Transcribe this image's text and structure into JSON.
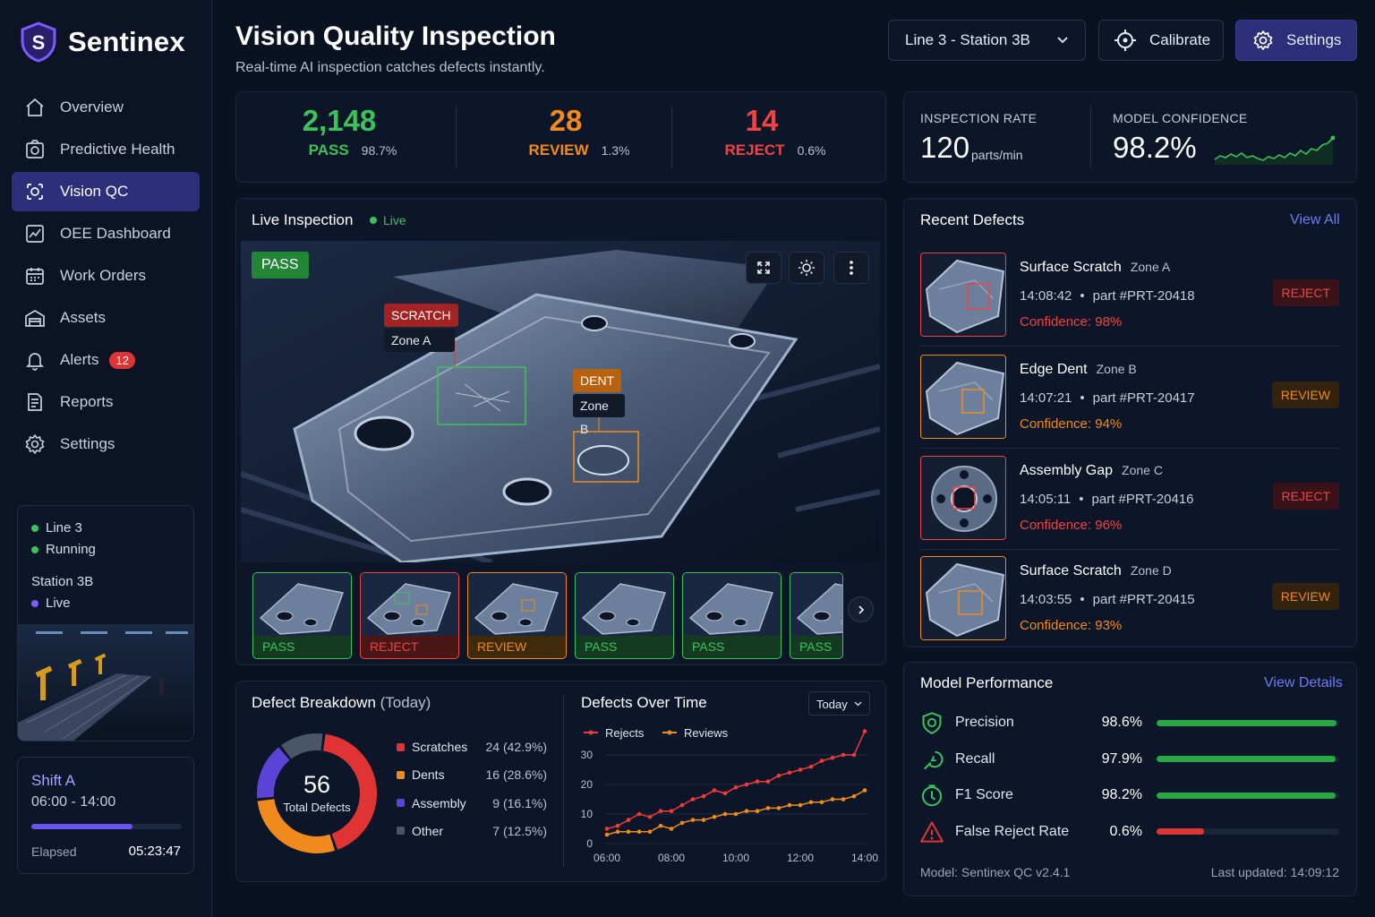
{
  "app": {
    "name": "Sentinex"
  },
  "nav": [
    {
      "label": "Overview",
      "icon": "home-icon"
    },
    {
      "label": "Predictive Health",
      "icon": "health-icon"
    },
    {
      "label": "Vision QC",
      "icon": "vision-icon",
      "active": true
    },
    {
      "label": "OEE Dashboard",
      "icon": "chart-icon"
    },
    {
      "label": "Work Orders",
      "icon": "calendar-icon"
    },
    {
      "label": "Assets",
      "icon": "warehouse-icon"
    },
    {
      "label": "Alerts",
      "icon": "bell-icon",
      "badge": "12"
    },
    {
      "label": "Reports",
      "icon": "document-icon"
    },
    {
      "label": "Settings",
      "icon": "gear-icon"
    }
  ],
  "line_status": {
    "line": "Line 3",
    "state": "Running",
    "station": "Station 3B",
    "live": "Live"
  },
  "shift": {
    "name": "Shift A",
    "hours": "06:00 - 14:00",
    "elapsed_label": "Elapsed",
    "elapsed": "05:23:47",
    "progress": 0.67
  },
  "header": {
    "title": "Vision Quality Inspection",
    "subtitle": "Real-time AI inspection catches defects instantly.",
    "station_select": "Line 3 - Station 3B",
    "calibrate": "Calibrate",
    "settings": "Settings"
  },
  "stats": [
    {
      "value": "2,148",
      "label": "PASS",
      "pct": "98.7%",
      "color": "#3cc25a"
    },
    {
      "value": "28",
      "label": "REVIEW",
      "pct": "1.3%",
      "color": "#f08a1c"
    },
    {
      "value": "14",
      "label": "REJECT",
      "pct": "0.6%",
      "color": "#ee4444"
    }
  ],
  "rate": {
    "label": "INSPECTION RATE",
    "value": "120",
    "unit": "parts/min"
  },
  "confidence": {
    "label": "MODEL CONFIDENCE",
    "value": "98.2%"
  },
  "live": {
    "title": "Live Inspection",
    "status": "Live",
    "result": "PASS",
    "tags": [
      {
        "type": "SCRATCH",
        "zone": "Zone A"
      },
      {
        "type": "DENT",
        "zone": "Zone B"
      }
    ],
    "thumbs": [
      "PASS",
      "REJECT",
      "REVIEW",
      "PASS",
      "PASS",
      "PASS"
    ]
  },
  "recent": {
    "title": "Recent Defects",
    "view_all": "View All",
    "items": [
      {
        "title": "Surface Scratch",
        "zone": "Zone A",
        "time": "14:08:42",
        "part": "part #PRT-20418",
        "confidence": "Confidence: 98%",
        "status": "REJECT"
      },
      {
        "title": "Edge Dent",
        "zone": "Zone B",
        "time": "14:07:21",
        "part": "part #PRT-20417",
        "confidence": "Confidence: 94%",
        "status": "REVIEW"
      },
      {
        "title": "Assembly Gap",
        "zone": "Zone C",
        "time": "14:05:11",
        "part": "part #PRT-20416",
        "confidence": "Confidence: 96%",
        "status": "REJECT"
      },
      {
        "title": "Surface Scratch",
        "zone": "Zone D",
        "time": "14:03:55",
        "part": "part #PRT-20415",
        "confidence": "Confidence: 93%",
        "status": "REVIEW"
      }
    ]
  },
  "breakdown": {
    "title": "Defect Breakdown",
    "period": "(Today)",
    "total": "56",
    "total_label": "Total Defects"
  },
  "over_time": {
    "title": "Defects Over Time",
    "range": "Today"
  },
  "model": {
    "title": "Model Performance",
    "view_details": "View Details",
    "metrics": [
      {
        "name": "Precision",
        "value": "98.6%",
        "fill": 0.986,
        "icon": "shield-check-icon",
        "color": "#28a745"
      },
      {
        "name": "Recall",
        "value": "97.9%",
        "fill": 0.979,
        "icon": "recall-icon",
        "color": "#28a745"
      },
      {
        "name": "F1 Score",
        "value": "98.2%",
        "fill": 0.982,
        "icon": "target-icon",
        "color": "#28a745"
      },
      {
        "name": "False Reject Rate",
        "value": "0.6%",
        "fill": 0.26,
        "icon": "warning-icon",
        "color": "#e03434"
      }
    ],
    "version": "Model: Sentinex QC v2.4.1",
    "updated": "Last updated: 14:09:12"
  },
  "chart_data": [
    {
      "type": "pie",
      "title": "Defect Breakdown (Today)",
      "categories": [
        "Scratches",
        "Dents",
        "Assembly",
        "Other"
      ],
      "values": [
        24,
        16,
        9,
        7
      ],
      "labels": [
        "24 (42.9%)",
        "16 (28.6%)",
        "9 (16.1%)",
        "7 (12.5%)"
      ],
      "colors": [
        "#e03434",
        "#f08a1c",
        "#5b43d6",
        "#4b5568"
      ]
    },
    {
      "type": "line",
      "title": "Defects Over Time",
      "x": [
        "06:00",
        "06:20",
        "06:40",
        "07:00",
        "07:20",
        "07:40",
        "08:00",
        "08:20",
        "08:40",
        "09:00",
        "09:20",
        "09:40",
        "10:00",
        "10:20",
        "10:40",
        "11:00",
        "11:20",
        "11:40",
        "12:00",
        "12:20",
        "12:40",
        "13:00",
        "13:20",
        "13:40",
        "14:00"
      ],
      "x_ticks": [
        "06:00",
        "08:00",
        "10:00",
        "12:00",
        "14:00"
      ],
      "ylim": [
        0,
        30
      ],
      "y_ticks": [
        0,
        10,
        20,
        30
      ],
      "series": [
        {
          "name": "Rejects",
          "color": "#ef3b3b",
          "values": [
            5,
            6,
            8,
            10,
            9,
            11,
            11,
            13,
            15,
            16,
            18,
            17,
            19,
            20,
            21,
            21,
            23,
            24,
            25,
            26,
            28,
            29,
            30,
            30,
            38
          ]
        },
        {
          "name": "Reviews",
          "color": "#f08a1c",
          "values": [
            3,
            4,
            4,
            4,
            4,
            6,
            5,
            7,
            8,
            8,
            9,
            10,
            10,
            11,
            11,
            12,
            12,
            13,
            13,
            14,
            14,
            15,
            15,
            16,
            18
          ]
        }
      ]
    }
  ]
}
